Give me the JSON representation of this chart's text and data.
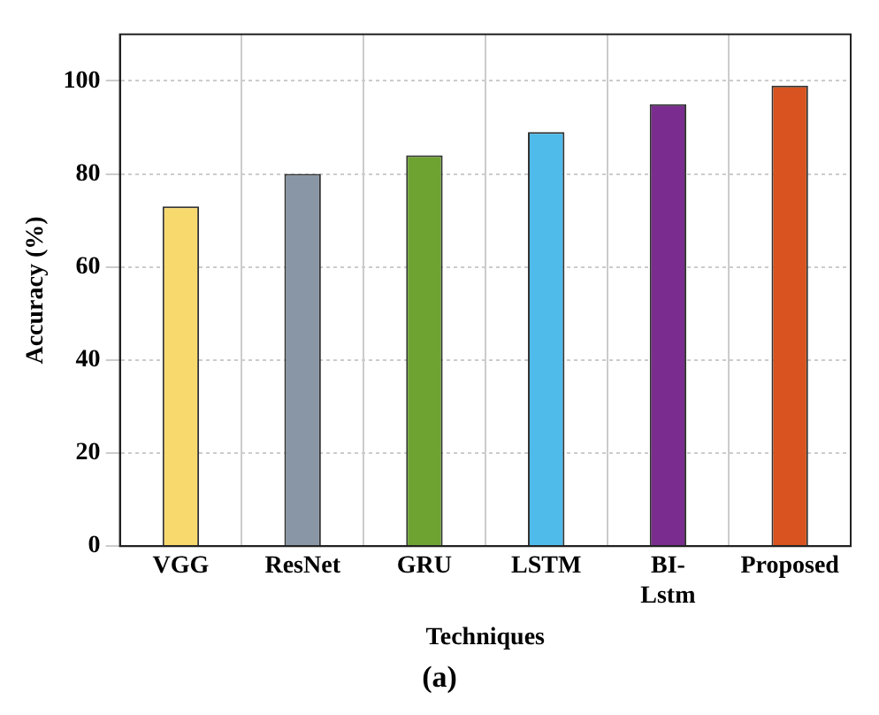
{
  "chart_data": {
    "type": "bar",
    "xlabel": "Techniques",
    "ylabel": "Accuracy (%)",
    "categories": [
      "VGG",
      "ResNet",
      "GRU",
      "LSTM",
      "BI-Lstm",
      "Proposed"
    ],
    "values": [
      73,
      80,
      84,
      89,
      95,
      99
    ],
    "colors": [
      "#f7d96e",
      "#8996a6",
      "#6ea332",
      "#4fbbea",
      "#7a2d8f",
      "#d8531f"
    ],
    "ylim": [
      0,
      110
    ],
    "yticks": [
      0,
      20,
      40,
      60,
      80,
      100
    ],
    "grid": true,
    "legend": false,
    "annotations": [
      "(a)"
    ]
  }
}
